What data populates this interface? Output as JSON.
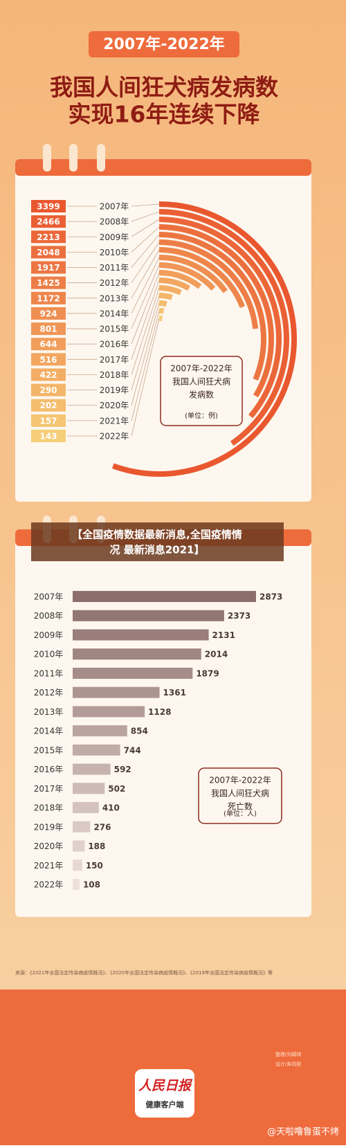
{
  "header": {
    "badge": "2007年-2022年",
    "title_lines": [
      "我国人间狂犬病发病数",
      "实现16年连续下降"
    ]
  },
  "chart_data": [
    {
      "type": "radial-bar",
      "title_lines": [
        "2007年-2022年",
        "我国人间狂犬病",
        "发病数"
      ],
      "unit": "(单位：例)",
      "categories": [
        "2007年",
        "2008年",
        "2009年",
        "2010年",
        "2011年",
        "2012年",
        "2013年",
        "2014年",
        "2015年",
        "2016年",
        "2017年",
        "2018年",
        "2019年",
        "2020年",
        "2021年",
        "2022年"
      ],
      "values": [
        3399,
        2466,
        2213,
        2048,
        1917,
        1425,
        1172,
        924,
        801,
        644,
        516,
        422,
        290,
        202,
        157,
        143
      ],
      "colors": [
        "#e9572f",
        "#f6cd78"
      ]
    },
    {
      "type": "bar",
      "title_lines": [
        "2007年-2022年",
        "我国人间狂犬病",
        "死亡数"
      ],
      "unit": "(单位：人)",
      "categories": [
        "2007年",
        "2008年",
        "2009年",
        "2010年",
        "2011年",
        "2012年",
        "2013年",
        "2014年",
        "2015年",
        "2016年",
        "2017年",
        "2018年",
        "2019年",
        "2020年",
        "2021年",
        "2022年"
      ],
      "values": [
        2873,
        2373,
        2131,
        2014,
        1879,
        1361,
        1128,
        854,
        744,
        592,
        502,
        410,
        276,
        188,
        150,
        108
      ],
      "colors": [
        "#8c6f6b",
        "#ede0db"
      ]
    }
  ],
  "overlay": {
    "caption_lines": [
      "【全国疫情数据最新消息,全国疫情情",
      "况 最新消息2021】"
    ]
  },
  "source": "来源：《2021年全国法定传染病疫情概况》、《2020年全国法定传染病疫情概况》、《2019年全国法定传染病疫情概况》等",
  "footer": {
    "logo": "人民日报",
    "logo_sub": "健康客户端",
    "credits": [
      "整理/刘颖琪",
      "设计/朱钧财"
    ],
    "watermark": "@天啦噜鲁蛋不烤"
  }
}
